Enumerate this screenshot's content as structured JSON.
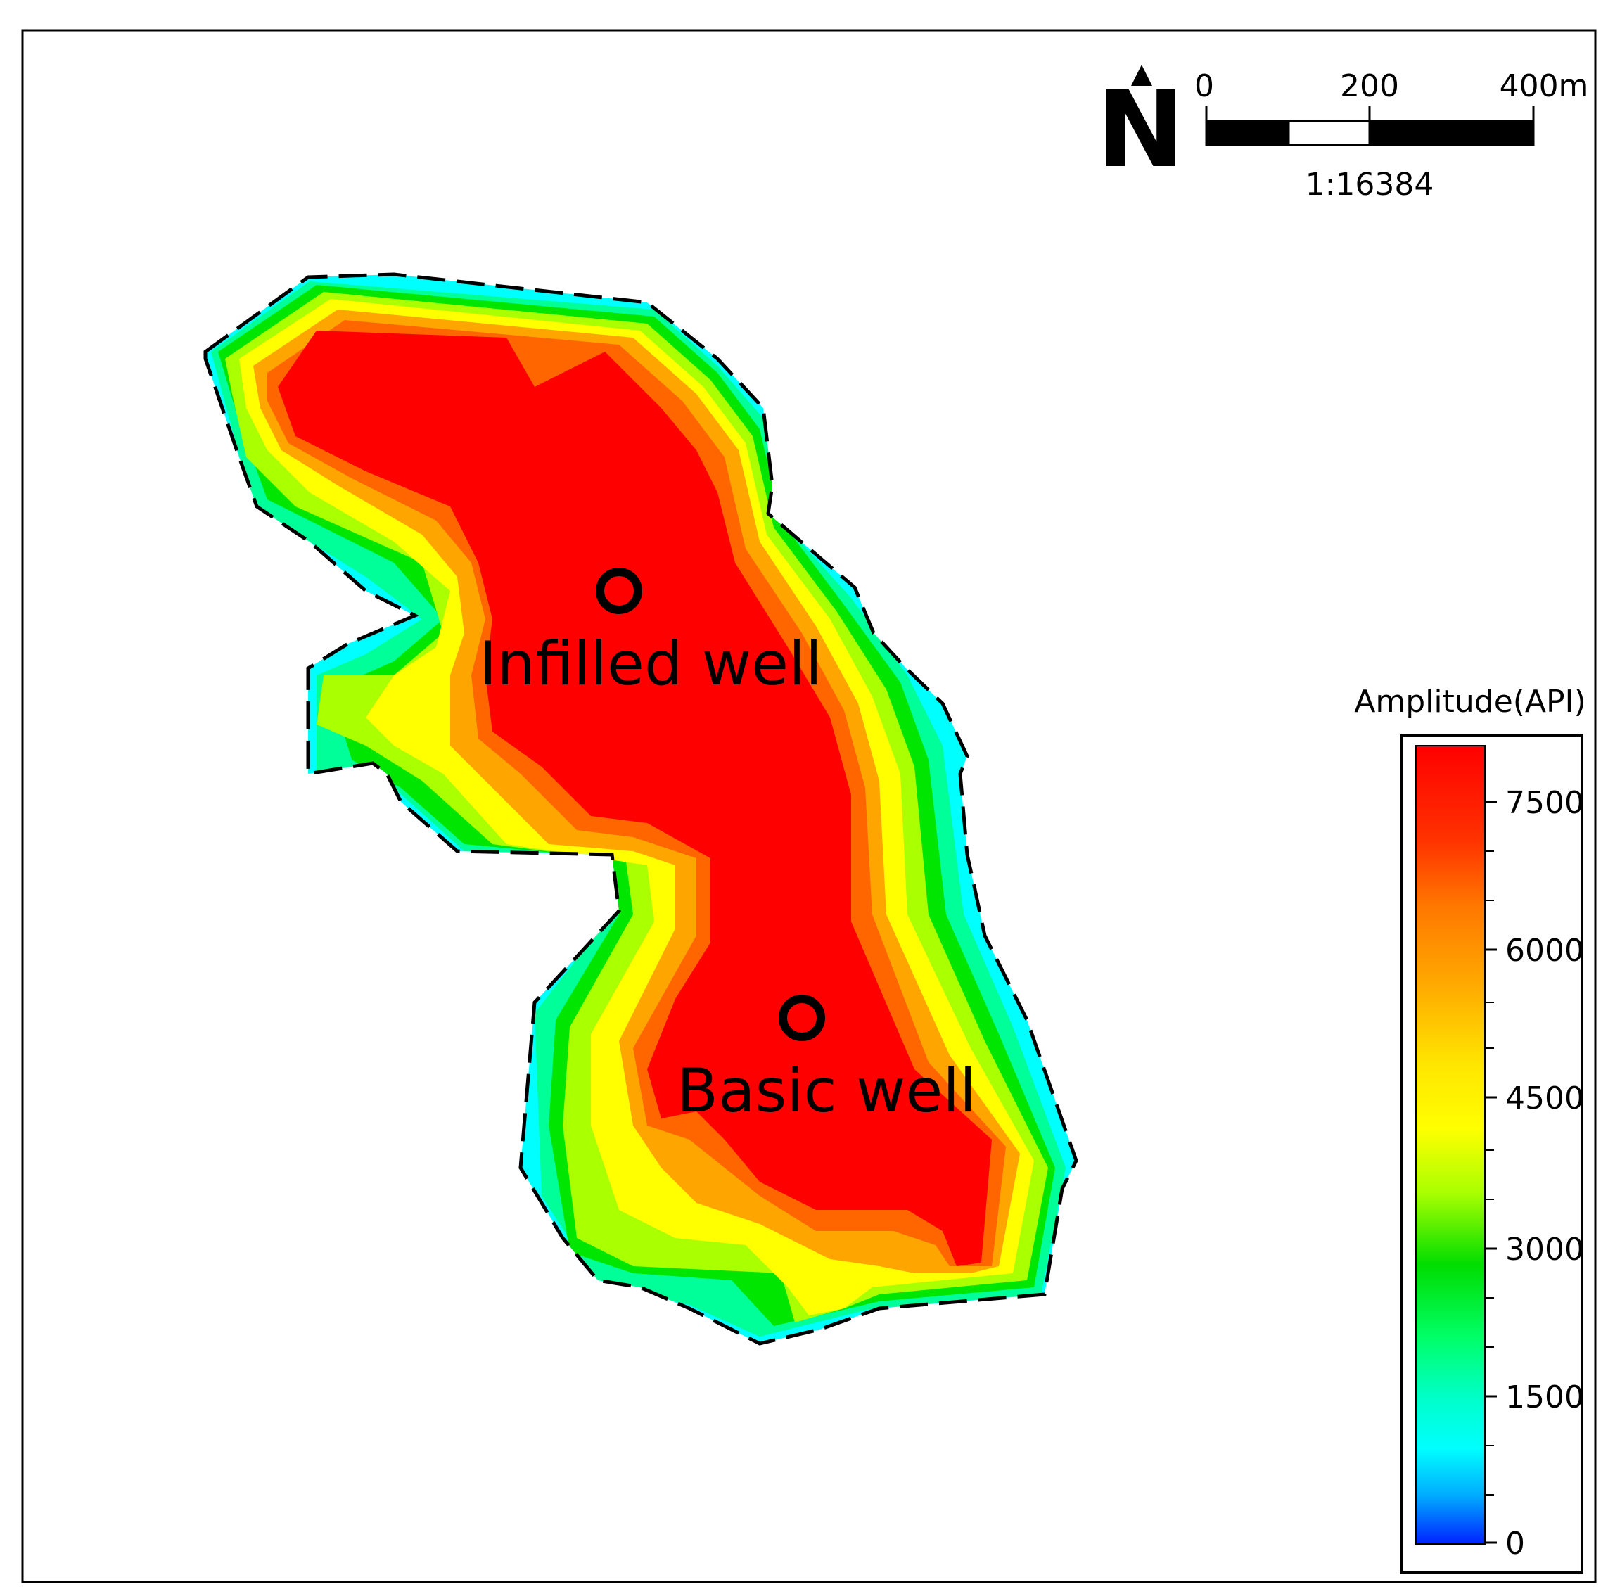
{
  "map": {
    "wells": [
      {
        "label": "Infilled well"
      },
      {
        "label": "Basic well"
      }
    ],
    "boundary_style": "dashed"
  },
  "north_arrow": {
    "icon": "north-arrow-icon",
    "label": "N"
  },
  "scale_bar": {
    "ticks": [
      "0",
      "200",
      "400m"
    ],
    "ratio": "1:16384"
  },
  "legend": {
    "title": "Amplitude(API)",
    "ticks": [
      "7500",
      "6000",
      "4500",
      "3000",
      "1500",
      "0"
    ],
    "min": 0,
    "max": 8000,
    "colors": {
      "red": "#ff0000",
      "orange_red": "#ff6600",
      "orange": "#ffa500",
      "yellow": "#ffff00",
      "yellow_green": "#aaff00",
      "green": "#00e600",
      "spring_green": "#00ff99",
      "cyan": "#00ffff",
      "blue": "#0022ff"
    }
  }
}
